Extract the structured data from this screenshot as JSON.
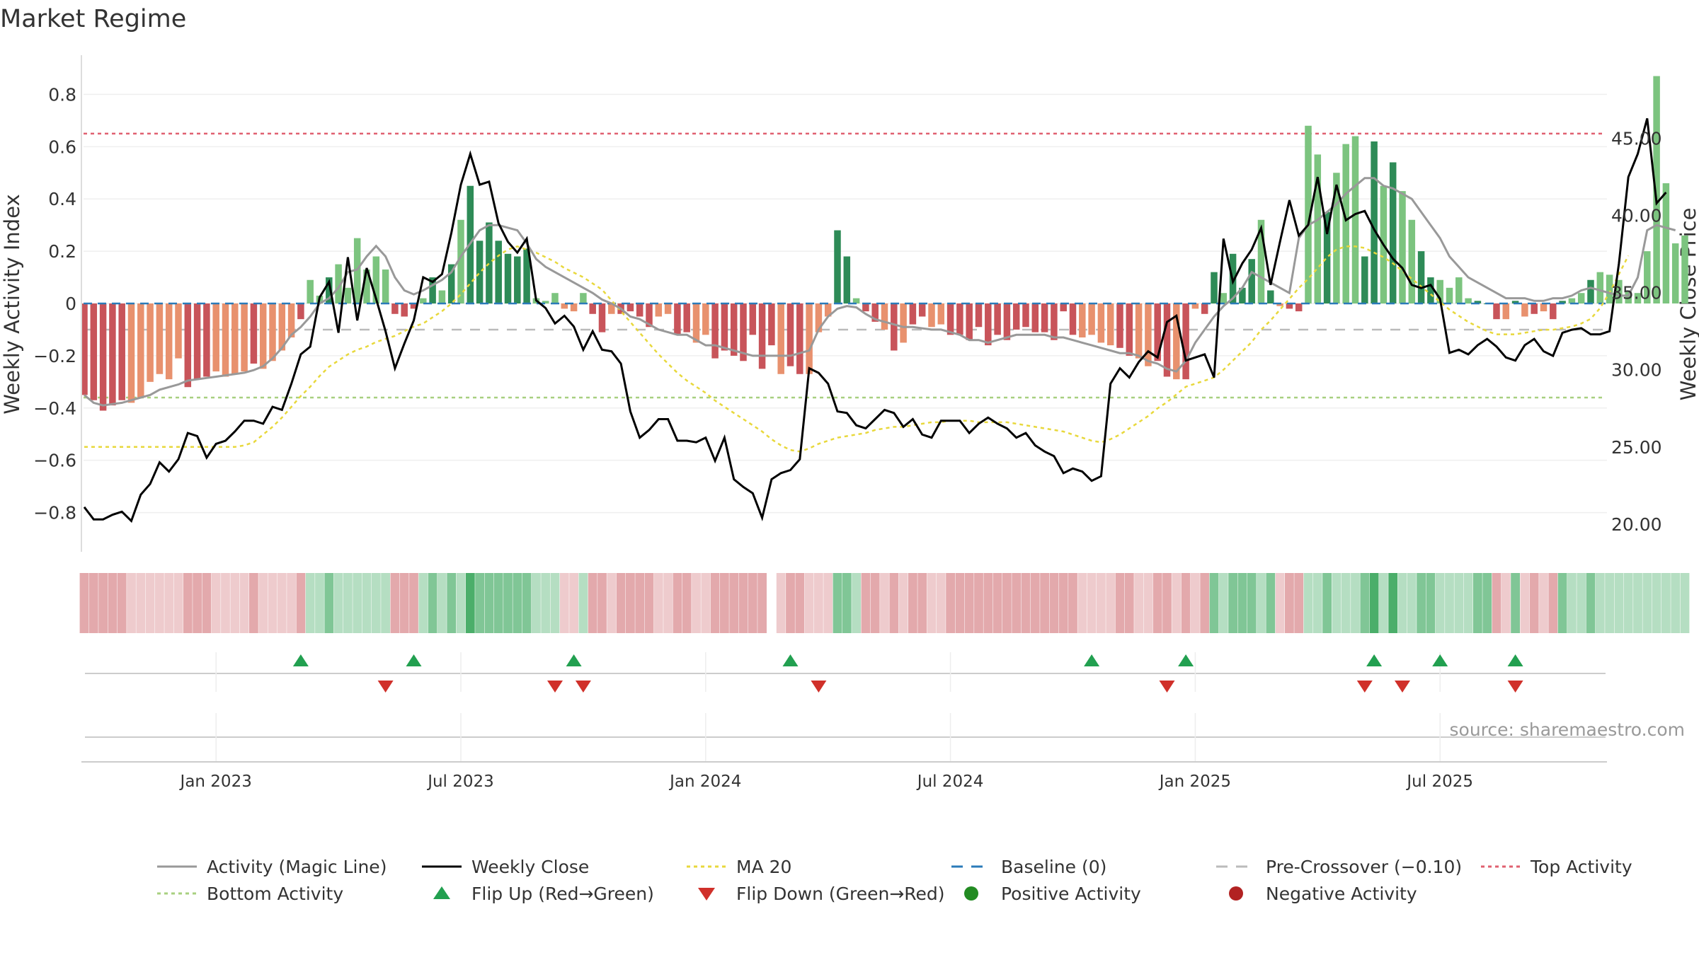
{
  "chart_data": {
    "type": "bar",
    "title": "Market Regime",
    "source": "source: sharemaestro.com",
    "ylabel_left": "Weekly Activity Index",
    "ylabel_right": "Weekly Close Price",
    "x_ticks": [
      "Jan 2023",
      "Jul 2023",
      "Jan 2024",
      "Jul 2024",
      "Jan 2025",
      "Jul 2025"
    ],
    "x_tick_weeks": [
      14,
      40,
      66,
      92,
      118,
      144
    ],
    "left_ylim": [
      -0.95,
      0.95
    ],
    "left_ticks": [
      "−0.8",
      "−0.6",
      "−0.4",
      "−0.2",
      "0",
      "0.2",
      "0.4",
      "0.6",
      "0.8"
    ],
    "left_tick_values": [
      -0.8,
      -0.6,
      -0.4,
      -0.2,
      0,
      0.2,
      0.4,
      0.6,
      0.8
    ],
    "right_ylim": [
      18.2,
      50.4
    ],
    "right_ticks": [
      "20.00",
      "25.00",
      "30.00",
      "35.00",
      "40.00",
      "45.00"
    ],
    "right_tick_values": [
      20,
      25,
      30,
      35,
      40,
      45
    ],
    "reference_lines": {
      "top_activity": 0.65,
      "bottom_activity": -0.36,
      "pre_crossover": -0.1,
      "baseline": 0
    },
    "colors": {
      "strong_green": "#2e8b57",
      "light_green": "#7cc47f",
      "strong_red": "#c8545a",
      "light_red": "#e8916e",
      "magic_line": "#999999",
      "close_line": "#000000",
      "ma20": "#e8d83c",
      "baseline": "#2b7bb9",
      "pre_crossover": "#bbbbbb",
      "top_line": "#e06070",
      "bottom_line": "#a8d080",
      "flip_up": "#22a050",
      "flip_down": "#d0302a"
    },
    "activity_strong_flags": [
      1,
      1,
      1,
      1,
      1,
      0,
      0,
      0,
      0,
      0,
      0,
      1,
      1,
      1,
      0,
      0,
      0,
      0,
      1,
      0,
      0,
      0,
      0,
      1,
      0,
      0,
      1,
      0,
      0,
      0,
      0,
      0,
      0,
      1,
      1,
      1,
      0,
      1,
      0,
      1,
      0,
      1,
      1,
      1,
      1,
      1,
      1,
      1,
      0,
      0,
      0,
      0,
      0,
      0,
      1,
      1,
      0,
      1,
      1,
      1,
      1,
      0,
      0,
      1,
      1,
      0,
      0,
      1,
      1,
      1,
      1,
      1,
      1,
      1,
      0,
      1,
      1,
      0,
      0,
      0,
      1,
      1,
      0,
      1,
      1,
      0,
      1,
      0,
      1,
      1,
      0,
      0,
      1,
      1,
      1,
      1,
      1,
      1,
      1,
      1,
      1,
      1,
      1,
      1,
      1,
      1,
      0,
      0,
      0,
      0,
      1,
      1,
      0,
      0,
      1,
      1,
      0,
      1,
      0,
      1,
      1,
      0,
      1,
      1,
      1,
      0,
      1,
      0,
      1,
      1,
      0,
      0,
      1,
      0,
      0,
      0,
      1,
      1,
      0,
      1,
      0,
      0,
      1,
      1,
      0,
      0,
      0,
      0,
      1,
      1,
      1,
      0,
      1,
      0,
      1,
      0,
      1,
      1,
      0,
      0,
      1
    ],
    "activity_index": [
      -0.35,
      -0.37,
      -0.41,
      -0.39,
      -0.37,
      -0.38,
      -0.36,
      -0.3,
      -0.27,
      -0.29,
      -0.21,
      -0.32,
      -0.29,
      -0.28,
      -0.26,
      -0.28,
      -0.27,
      -0.26,
      -0.23,
      -0.25,
      -0.22,
      -0.18,
      -0.13,
      -0.06,
      0.09,
      0.03,
      0.1,
      0.15,
      0.06,
      0.25,
      0.13,
      0.18,
      0.13,
      -0.04,
      -0.05,
      -0.02,
      0.02,
      0.1,
      0.05,
      0.15,
      0.32,
      0.45,
      0.24,
      0.31,
      0.24,
      0.19,
      0.18,
      0.21,
      0.02,
      0.01,
      0.04,
      -0.02,
      -0.03,
      0.04,
      -0.04,
      -0.11,
      -0.04,
      -0.04,
      -0.03,
      -0.05,
      -0.09,
      -0.05,
      -0.04,
      -0.12,
      -0.11,
      -0.15,
      -0.12,
      -0.21,
      -0.18,
      -0.2,
      -0.22,
      -0.12,
      -0.25,
      -0.16,
      -0.27,
      -0.24,
      -0.27,
      -0.27,
      -0.11,
      -0.05,
      0.28,
      0.18,
      0.02,
      -0.03,
      -0.07,
      -0.1,
      -0.18,
      -0.15,
      -0.08,
      -0.05,
      -0.09,
      -0.08,
      -0.12,
      -0.12,
      -0.14,
      -0.09,
      -0.16,
      -0.12,
      -0.14,
      -0.1,
      -0.09,
      -0.11,
      -0.11,
      -0.14,
      -0.03,
      -0.12,
      -0.13,
      -0.12,
      -0.15,
      -0.16,
      -0.17,
      -0.2,
      -0.21,
      -0.24,
      -0.22,
      -0.28,
      -0.29,
      -0.29,
      -0.02,
      -0.04,
      0.12,
      0.04,
      0.19,
      0.06,
      0.17,
      0.32,
      0.05,
      -0.01,
      -0.02,
      -0.03,
      0.68,
      0.57,
      0.35,
      0.5,
      0.61,
      0.64,
      0.18,
      0.62,
      0.45,
      0.54,
      0.43,
      0.32,
      0.2,
      0.1,
      0.09,
      0.06,
      0.1,
      0.02,
      0.01,
      0,
      -0.06,
      -0.06,
      0.01,
      -0.05,
      -0.04,
      -0.03,
      -0.06,
      0.01,
      0.02,
      0.04,
      0.09,
      0.12,
      0.11,
      0.09,
      0.05,
      0.04,
      0.2,
      0.87,
      0.46,
      0.23,
      0.26
    ],
    "magic_line": [
      -0.35,
      -0.38,
      -0.39,
      -0.385,
      -0.38,
      -0.37,
      -0.36,
      -0.35,
      -0.33,
      -0.32,
      -0.31,
      -0.295,
      -0.29,
      -0.285,
      -0.28,
      -0.275,
      -0.27,
      -0.265,
      -0.255,
      -0.24,
      -0.21,
      -0.17,
      -0.12,
      -0.09,
      -0.05,
      0,
      0.02,
      0.06,
      0.12,
      0.13,
      0.18,
      0.22,
      0.18,
      0.1,
      0.05,
      0.035,
      0.05,
      0.07,
      0.09,
      0.12,
      0.18,
      0.23,
      0.28,
      0.3,
      0.3,
      0.29,
      0.28,
      0.23,
      0.17,
      0.14,
      0.12,
      0.1,
      0.08,
      0.06,
      0.04,
      0.015,
      0,
      -0.02,
      -0.05,
      -0.06,
      -0.08,
      -0.1,
      -0.11,
      -0.12,
      -0.12,
      -0.14,
      -0.16,
      -0.16,
      -0.17,
      -0.18,
      -0.19,
      -0.2,
      -0.2,
      -0.2,
      -0.2,
      -0.2,
      -0.19,
      -0.18,
      -0.1,
      -0.05,
      -0.02,
      -0.01,
      -0.015,
      -0.04,
      -0.06,
      -0.07,
      -0.08,
      -0.09,
      -0.09,
      -0.095,
      -0.1,
      -0.1,
      -0.11,
      -0.12,
      -0.14,
      -0.14,
      -0.15,
      -0.14,
      -0.13,
      -0.12,
      -0.12,
      -0.12,
      -0.12,
      -0.13,
      -0.13,
      -0.14,
      -0.15,
      -0.16,
      -0.17,
      -0.18,
      -0.19,
      -0.19,
      -0.2,
      -0.22,
      -0.23,
      -0.25,
      -0.26,
      -0.22,
      -0.15,
      -0.1,
      -0.05,
      -0.01,
      0.02,
      0.06,
      0.12,
      0.1,
      0.08,
      0.06,
      0.04,
      0.25,
      0.3,
      0.32,
      0.35,
      0.38,
      0.42,
      0.45,
      0.48,
      0.48,
      0.45,
      0.44,
      0.42,
      0.4,
      0.35,
      0.3,
      0.25,
      0.18,
      0.14,
      0.1,
      0.08,
      0.06,
      0.04,
      0.02,
      0.02,
      0.02,
      0.01,
      0.01,
      0.02,
      0.02,
      0.03,
      0.05,
      0.06,
      0.05,
      0.04,
      0.03,
      0.03,
      0.1,
      0.28,
      0.3,
      0.29,
      0.28
    ],
    "weekly_close": [
      21.1,
      20.3,
      20.3,
      20.6,
      20.8,
      20.2,
      21.9,
      22.6,
      24.0,
      23.4,
      24.2,
      25.9,
      25.7,
      24.3,
      25.2,
      25.4,
      26.0,
      26.7,
      26.7,
      26.5,
      27.6,
      27.4,
      29.1,
      31.0,
      31.5,
      34.7,
      35.7,
      32.4,
      37.3,
      33.2,
      36.6,
      34.6,
      32.5,
      30.1,
      31.7,
      33.2,
      36.0,
      35.7,
      36.2,
      38.9,
      42.0,
      44.0,
      42.0,
      42.2,
      39.5,
      38.3,
      37.6,
      38.5,
      34.5,
      34.0,
      33.0,
      33.5,
      32.8,
      31.3,
      32.5,
      31.3,
      31.2,
      30.4,
      27.3,
      25.6,
      26.1,
      26.8,
      26.8,
      25.4,
      25.4,
      25.3,
      25.6,
      24.1,
      25.6,
      22.9,
      22.4,
      22.0,
      20.4,
      22.9,
      23.3,
      23.5,
      24.2,
      30.1,
      29.8,
      29.1,
      27.3,
      27.2,
      26.4,
      26.2,
      26.8,
      27.4,
      27.2,
      26.3,
      26.8,
      25.8,
      25.6,
      26.7,
      26.7,
      26.7,
      25.9,
      26.5,
      26.9,
      26.5,
      26.2,
      25.6,
      25.9,
      25.1,
      24.7,
      24.4,
      23.3,
      23.6,
      23.4,
      22.8,
      23.1,
      29.1,
      30.1,
      29.5,
      30.5,
      31.2,
      30.8,
      33.1,
      33.5,
      30.6,
      30.8,
      31.0,
      29.5,
      38.5,
      35.7,
      36.9,
      37.8,
      39.2,
      35.5,
      38.3,
      41.0,
      38.7,
      39.4,
      42.5,
      38.8,
      42.0,
      39.7,
      40.1,
      40.3,
      39.1,
      38.1,
      37.2,
      36.6,
      35.5,
      35.3,
      35.5,
      34.6,
      31.1,
      31.3,
      31.0,
      31.6,
      32.0,
      31.5,
      30.8,
      30.6,
      31.6,
      32.0,
      31.2,
      30.9,
      32.4,
      32.6,
      32.7,
      32.3,
      32.3,
      32.5,
      36.9,
      42.5,
      44.0,
      46.3,
      40.8,
      41.5
    ],
    "ma20": [
      25.0,
      25.0,
      25.0,
      25.0,
      25.0,
      25.0,
      25.0,
      25.0,
      25.0,
      25.0,
      25.0,
      25.0,
      25.0,
      25.0,
      25.0,
      25.0,
      25.0,
      25.1,
      25.3,
      25.8,
      26.3,
      26.9,
      27.6,
      28.3,
      28.9,
      29.6,
      30.2,
      30.6,
      31.0,
      31.3,
      31.5,
      31.8,
      32.0,
      32.2,
      32.5,
      32.8,
      33.0,
      33.4,
      33.8,
      34.3,
      34.9,
      35.6,
      36.3,
      36.9,
      37.4,
      37.8,
      38.0,
      37.8,
      37.6,
      37.3,
      37.0,
      36.6,
      36.3,
      36.0,
      35.6,
      35.2,
      34.5,
      33.8,
      33.1,
      32.4,
      31.7,
      31.0,
      30.4,
      29.8,
      29.3,
      28.9,
      28.5,
      28.0,
      27.6,
      27.2,
      26.8,
      26.4,
      26.0,
      25.5,
      25.1,
      24.8,
      24.7,
      24.9,
      25.2,
      25.4,
      25.6,
      25.7,
      25.8,
      25.9,
      26.1,
      26.2,
      26.3,
      26.3,
      26.4,
      26.5,
      26.6,
      26.6,
      26.7,
      26.7,
      26.7,
      26.6,
      26.6,
      26.6,
      26.6,
      26.5,
      26.4,
      26.3,
      26.2,
      26.1,
      26.0,
      25.8,
      25.6,
      25.4,
      25.3,
      25.5,
      25.8,
      26.2,
      26.6,
      27.0,
      27.5,
      27.9,
      28.4,
      28.9,
      29.1,
      29.3,
      29.5,
      30.0,
      30.6,
      31.2,
      31.8,
      32.6,
      33.2,
      33.9,
      34.6,
      35.3,
      35.9,
      36.6,
      37.3,
      37.8,
      38.0,
      38.0,
      37.9,
      37.6,
      37.3,
      36.9,
      36.4,
      35.9,
      35.4,
      34.9,
      34.4,
      33.9,
      33.5,
      33.1,
      32.8,
      32.5,
      32.3,
      32.3,
      32.3,
      32.4,
      32.5,
      32.6,
      32.6,
      32.7,
      32.8,
      33.0,
      33.3,
      34.0,
      35.0,
      36.2,
      37.4
    ],
    "heatmap_breaks": [
      73
    ],
    "flip_up_weeks": [
      23,
      35,
      52,
      75,
      107,
      117,
      137,
      144,
      152
    ],
    "flip_down_weeks": [
      32,
      50,
      53,
      78,
      115,
      136,
      140,
      152
    ],
    "legend": [
      {
        "label": "Activity (Magic Line)",
        "kind": "line",
        "color": "#999999"
      },
      {
        "label": "Weekly Close",
        "kind": "line",
        "color": "#000000"
      },
      {
        "label": "MA 20",
        "kind": "dotted",
        "color": "#e8d83c"
      },
      {
        "label": "Baseline (0)",
        "kind": "dashed",
        "color": "#2b7bb9"
      },
      {
        "label": "Pre-Crossover (−0.10)",
        "kind": "dashed",
        "color": "#bbbbbb"
      },
      {
        "label": "Top Activity",
        "kind": "dotted",
        "color": "#e06070"
      },
      {
        "label": "Bottom Activity",
        "kind": "dotted",
        "color": "#a8d080"
      },
      {
        "label": "Flip Up (Red→Green)",
        "kind": "tri-up",
        "color": "#22a050"
      },
      {
        "label": "Flip Down (Green→Red)",
        "kind": "tri-down",
        "color": "#d0302a"
      },
      {
        "label": "Positive Activity",
        "kind": "dot",
        "color": "#228b22"
      },
      {
        "label": "Negative Activity",
        "kind": "dot",
        "color": "#b22222"
      }
    ]
  }
}
